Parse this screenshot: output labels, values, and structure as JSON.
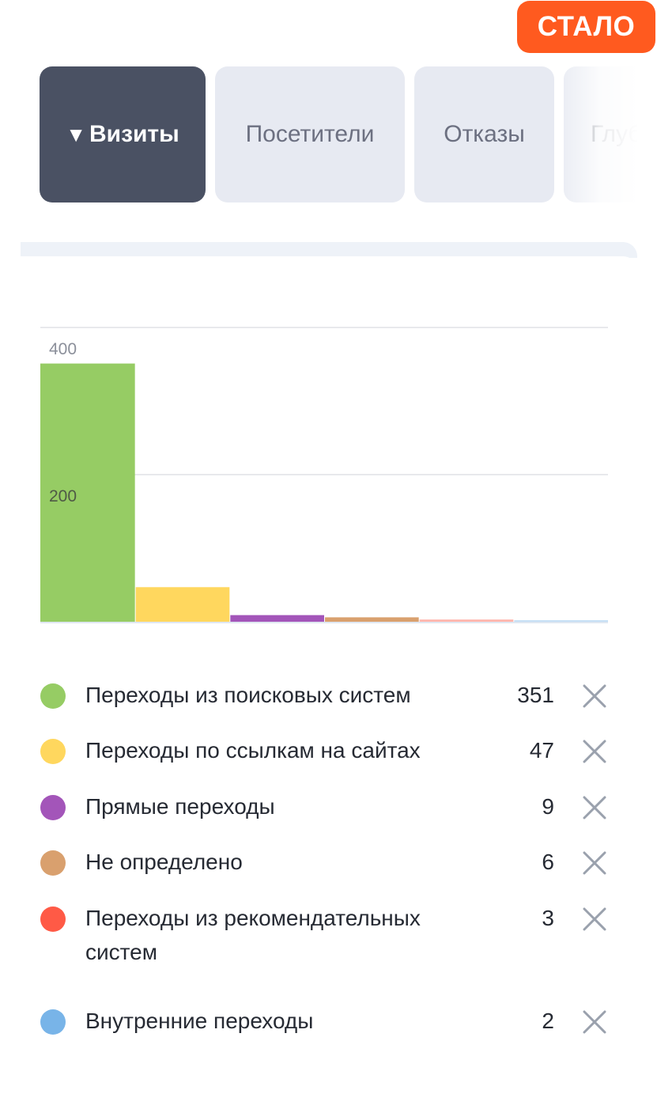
{
  "badge": {
    "text": "СТАЛО",
    "color": "#ff5a1f"
  },
  "tabs": [
    {
      "label": "Визиты",
      "active": true,
      "sort_icon": "triangle-down-icon",
      "sort_glyph": "▼"
    },
    {
      "label": "Посетители",
      "active": false
    },
    {
      "label": "Отказы",
      "active": false
    },
    {
      "label": "Глубина",
      "active": false
    }
  ],
  "chart_data": {
    "type": "bar",
    "categories": [
      "Переходы из поисковых систем",
      "Переходы по ссылкам на сайтах",
      "Прямые переходы",
      "Не определено",
      "Переходы из рекомендательных систем",
      "Внутренние переходы"
    ],
    "values": [
      351,
      47,
      9,
      6,
      3,
      2
    ],
    "colors": [
      "#96cc64",
      "#ffd75e",
      "#a355b9",
      "#d9a06e",
      "#ff5a46",
      "#78b4e8"
    ],
    "yticks": [
      {
        "value": 200,
        "label": "200"
      },
      {
        "value": 400,
        "label": "400"
      }
    ],
    "ylim": [
      0,
      400
    ],
    "grid": true,
    "title": "",
    "xlabel": "",
    "ylabel": ""
  },
  "legend": [
    {
      "label": "Переходы из поисковых систем",
      "value": "351",
      "color": "#96cc64",
      "remove_icon": "close-icon"
    },
    {
      "label": "Переходы по ссылкам на сайтах",
      "value": "47",
      "color": "#ffd75e",
      "remove_icon": "close-icon"
    },
    {
      "label": "Прямые переходы",
      "value": "9",
      "color": "#a355b9",
      "remove_icon": "close-icon"
    },
    {
      "label": "Не определено",
      "value": "6",
      "color": "#d9a06e",
      "remove_icon": "close-icon"
    },
    {
      "label": "Переходы из рекомендательных систем",
      "value": "3",
      "color": "#ff5a46",
      "remove_icon": "close-icon"
    },
    {
      "label": "Внутренние переходы",
      "value": "2",
      "color": "#78b4e8",
      "remove_icon": "close-icon"
    }
  ]
}
